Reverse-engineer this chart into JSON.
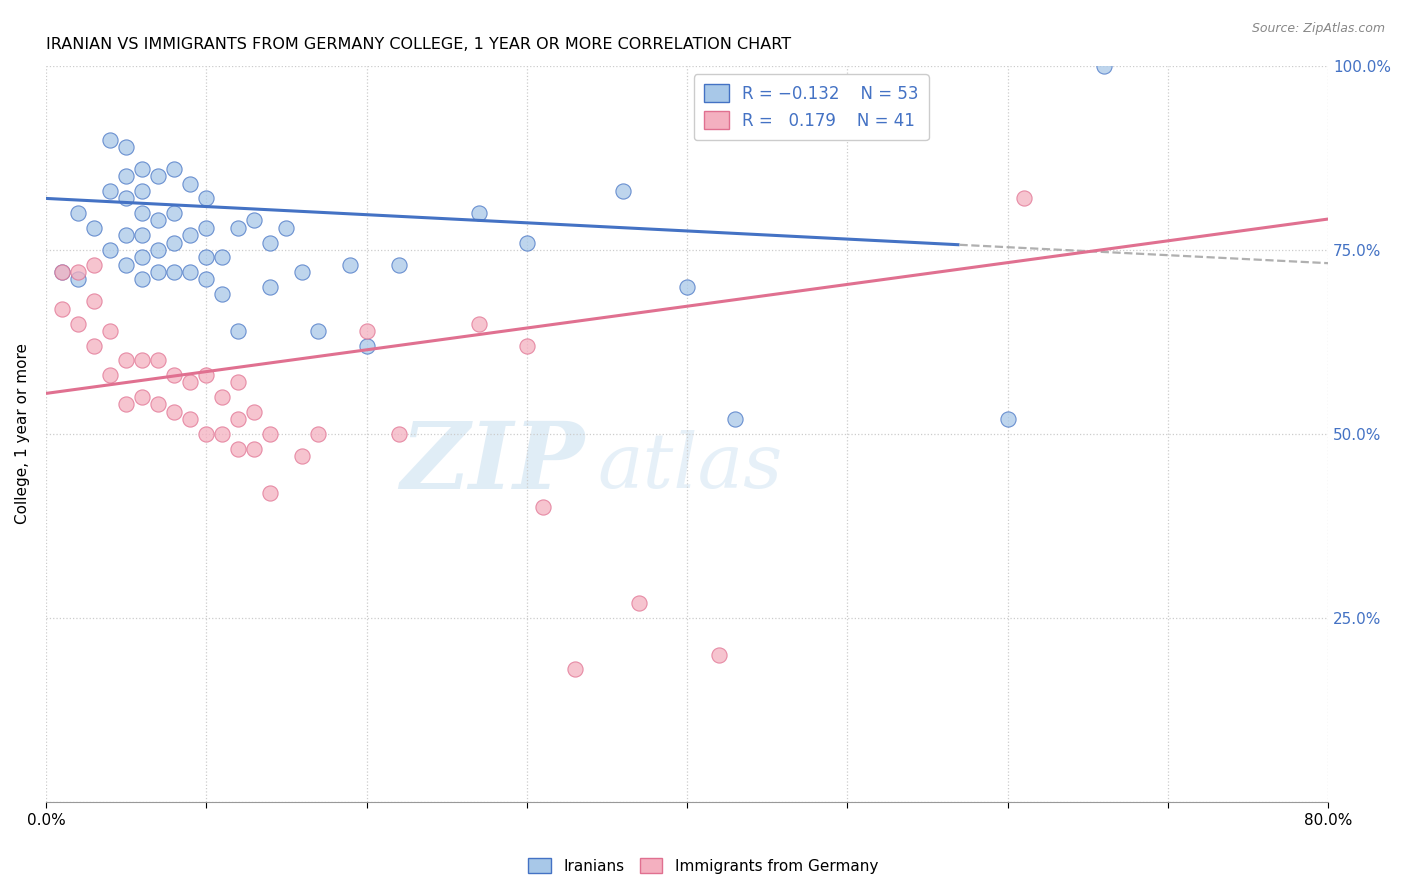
{
  "title": "IRANIAN VS IMMIGRANTS FROM GERMANY COLLEGE, 1 YEAR OR MORE CORRELATION CHART",
  "source": "Source: ZipAtlas.com",
  "ylabel": "College, 1 year or more",
  "x_min": 0.0,
  "x_max": 0.8,
  "y_min": 0.0,
  "y_max": 1.0,
  "x_ticks": [
    0.0,
    0.1,
    0.2,
    0.3,
    0.4,
    0.5,
    0.6,
    0.7,
    0.8
  ],
  "y_ticks": [
    0.0,
    0.25,
    0.5,
    0.75,
    1.0
  ],
  "y_tick_labels_right": [
    "",
    "25.0%",
    "50.0%",
    "75.0%",
    "100.0%"
  ],
  "color_blue": "#a8c8e8",
  "color_pink": "#f4b0c0",
  "line_blue": "#4472c4",
  "line_pink": "#e07090",
  "line_dashed_color": "#b0b0b0",
  "watermark_zip": "ZIP",
  "watermark_atlas": "atlas",
  "blue_scatter_x": [
    0.01,
    0.02,
    0.02,
    0.03,
    0.04,
    0.04,
    0.04,
    0.05,
    0.05,
    0.05,
    0.05,
    0.05,
    0.06,
    0.06,
    0.06,
    0.06,
    0.06,
    0.06,
    0.07,
    0.07,
    0.07,
    0.07,
    0.08,
    0.08,
    0.08,
    0.08,
    0.09,
    0.09,
    0.09,
    0.1,
    0.1,
    0.1,
    0.1,
    0.11,
    0.11,
    0.12,
    0.12,
    0.13,
    0.14,
    0.14,
    0.15,
    0.16,
    0.17,
    0.19,
    0.2,
    0.22,
    0.27,
    0.3,
    0.36,
    0.4,
    0.43,
    0.6,
    0.66
  ],
  "blue_scatter_y": [
    0.72,
    0.71,
    0.8,
    0.78,
    0.75,
    0.83,
    0.9,
    0.73,
    0.77,
    0.82,
    0.85,
    0.89,
    0.71,
    0.74,
    0.77,
    0.8,
    0.83,
    0.86,
    0.72,
    0.75,
    0.79,
    0.85,
    0.72,
    0.76,
    0.8,
    0.86,
    0.72,
    0.77,
    0.84,
    0.71,
    0.74,
    0.78,
    0.82,
    0.69,
    0.74,
    0.64,
    0.78,
    0.79,
    0.7,
    0.76,
    0.78,
    0.72,
    0.64,
    0.73,
    0.62,
    0.73,
    0.8,
    0.76,
    0.83,
    0.7,
    0.52,
    0.52,
    1.0
  ],
  "pink_scatter_x": [
    0.01,
    0.01,
    0.02,
    0.02,
    0.03,
    0.03,
    0.03,
    0.04,
    0.04,
    0.05,
    0.05,
    0.06,
    0.06,
    0.07,
    0.07,
    0.08,
    0.08,
    0.09,
    0.09,
    0.1,
    0.1,
    0.11,
    0.11,
    0.12,
    0.12,
    0.12,
    0.13,
    0.13,
    0.14,
    0.14,
    0.16,
    0.17,
    0.2,
    0.22,
    0.27,
    0.3,
    0.31,
    0.33,
    0.37,
    0.42,
    0.61
  ],
  "pink_scatter_y": [
    0.67,
    0.72,
    0.65,
    0.72,
    0.62,
    0.68,
    0.73,
    0.58,
    0.64,
    0.54,
    0.6,
    0.55,
    0.6,
    0.54,
    0.6,
    0.53,
    0.58,
    0.52,
    0.57,
    0.5,
    0.58,
    0.5,
    0.55,
    0.48,
    0.52,
    0.57,
    0.48,
    0.53,
    0.42,
    0.5,
    0.47,
    0.5,
    0.64,
    0.5,
    0.65,
    0.62,
    0.4,
    0.18,
    0.27,
    0.2,
    0.82
  ],
  "blue_line_x": [
    0.0,
    0.57
  ],
  "blue_line_y": [
    0.82,
    0.757
  ],
  "dashed_line_x": [
    0.57,
    0.8
  ],
  "dashed_line_y": [
    0.757,
    0.732
  ],
  "pink_line_x": [
    0.0,
    0.8
  ],
  "pink_line_y": [
    0.555,
    0.792
  ]
}
